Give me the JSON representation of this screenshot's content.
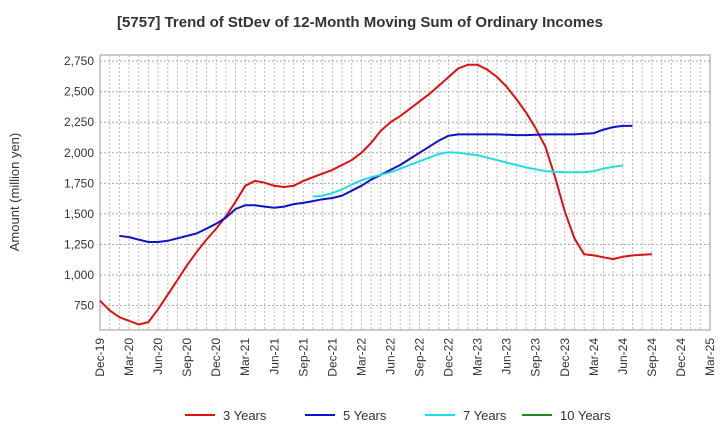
{
  "chart_data": {
    "type": "line",
    "title": "[5757]  Trend of StDev of 12-Month Moving Sum of Ordinary Incomes",
    "xlabel": "",
    "ylabel": "Amount (million yen)",
    "ylim": [
      550,
      2800
    ],
    "yticks": [
      750,
      1000,
      1250,
      1500,
      1750,
      2000,
      2250,
      2500,
      2750
    ],
    "ytick_labels": [
      "750",
      "1,000",
      "1,250",
      "1,500",
      "1,750",
      "2,000",
      "2,250",
      "2,500",
      "2,750"
    ],
    "x_tick_labels": [
      "Dec-19",
      "Mar-20",
      "Jun-20",
      "Sep-20",
      "Dec-20",
      "Mar-21",
      "Jun-21",
      "Sep-21",
      "Dec-21",
      "Mar-22",
      "Jun-22",
      "Sep-22",
      "Dec-22",
      "Mar-23",
      "Jun-23",
      "Sep-23",
      "Dec-23",
      "Mar-24",
      "Jun-24",
      "Sep-24",
      "Dec-24",
      "Mar-25"
    ],
    "grid": true,
    "legend_position": "bottom",
    "series": [
      {
        "name": "3 Years",
        "color": "#dd1111",
        "points": [
          [
            0,
            790
          ],
          [
            1,
            710
          ],
          [
            2,
            655
          ],
          [
            3,
            625
          ],
          [
            4,
            595
          ],
          [
            5,
            615
          ],
          [
            6,
            720
          ],
          [
            7,
            840
          ],
          [
            8,
            960
          ],
          [
            9,
            1080
          ],
          [
            10,
            1190
          ],
          [
            11,
            1290
          ],
          [
            12,
            1380
          ],
          [
            13,
            1480
          ],
          [
            14,
            1600
          ],
          [
            15,
            1730
          ],
          [
            16,
            1770
          ],
          [
            17,
            1755
          ],
          [
            18,
            1730
          ],
          [
            19,
            1720
          ],
          [
            20,
            1730
          ],
          [
            21,
            1770
          ],
          [
            22,
            1800
          ],
          [
            23,
            1830
          ],
          [
            24,
            1860
          ],
          [
            25,
            1900
          ],
          [
            26,
            1940
          ],
          [
            27,
            2000
          ],
          [
            28,
            2080
          ],
          [
            29,
            2180
          ],
          [
            30,
            2250
          ],
          [
            31,
            2300
          ],
          [
            32,
            2360
          ],
          [
            33,
            2420
          ],
          [
            34,
            2480
          ],
          [
            35,
            2550
          ],
          [
            36,
            2620
          ],
          [
            37,
            2690
          ],
          [
            38,
            2720
          ],
          [
            39,
            2720
          ],
          [
            40,
            2680
          ],
          [
            41,
            2620
          ],
          [
            42,
            2540
          ],
          [
            43,
            2440
          ],
          [
            44,
            2330
          ],
          [
            45,
            2200
          ],
          [
            46,
            2050
          ],
          [
            47,
            1800
          ],
          [
            48,
            1520
          ],
          [
            49,
            1300
          ],
          [
            50,
            1170
          ],
          [
            51,
            1160
          ],
          [
            52,
            1145
          ],
          [
            53,
            1130
          ],
          [
            54,
            1150
          ],
          [
            55,
            1160
          ],
          [
            56,
            1165
          ],
          [
            57,
            1170
          ]
        ]
      },
      {
        "name": "5 Years",
        "color": "#1111cc",
        "points": [
          [
            2,
            1320
          ],
          [
            3,
            1310
          ],
          [
            4,
            1290
          ],
          [
            5,
            1270
          ],
          [
            6,
            1270
          ],
          [
            7,
            1280
          ],
          [
            8,
            1300
          ],
          [
            9,
            1320
          ],
          [
            10,
            1340
          ],
          [
            11,
            1380
          ],
          [
            12,
            1420
          ],
          [
            13,
            1470
          ],
          [
            14,
            1540
          ],
          [
            15,
            1570
          ],
          [
            16,
            1570
          ],
          [
            17,
            1560
          ],
          [
            18,
            1550
          ],
          [
            19,
            1560
          ],
          [
            20,
            1580
          ],
          [
            21,
            1590
          ],
          [
            22,
            1605
          ],
          [
            23,
            1620
          ],
          [
            24,
            1630
          ],
          [
            25,
            1650
          ],
          [
            26,
            1690
          ],
          [
            27,
            1730
          ],
          [
            28,
            1780
          ],
          [
            29,
            1820
          ],
          [
            30,
            1860
          ],
          [
            31,
            1900
          ],
          [
            32,
            1950
          ],
          [
            33,
            2000
          ],
          [
            34,
            2050
          ],
          [
            35,
            2100
          ],
          [
            36,
            2140
          ],
          [
            37,
            2150
          ],
          [
            38,
            2150
          ],
          [
            39,
            2150
          ],
          [
            40,
            2150
          ],
          [
            41,
            2150
          ],
          [
            42,
            2148
          ],
          [
            43,
            2145
          ],
          [
            44,
            2145
          ],
          [
            45,
            2148
          ],
          [
            46,
            2150
          ],
          [
            47,
            2150
          ],
          [
            48,
            2150
          ],
          [
            49,
            2150
          ],
          [
            50,
            2155
          ],
          [
            51,
            2160
          ],
          [
            52,
            2190
          ],
          [
            53,
            2210
          ],
          [
            54,
            2220
          ],
          [
            55,
            2220
          ]
        ]
      },
      {
        "name": "7 Years",
        "color": "#22dddd",
        "points": [
          [
            22,
            1640
          ],
          [
            23,
            1650
          ],
          [
            24,
            1670
          ],
          [
            25,
            1700
          ],
          [
            26,
            1740
          ],
          [
            27,
            1775
          ],
          [
            28,
            1800
          ],
          [
            29,
            1820
          ],
          [
            30,
            1840
          ],
          [
            31,
            1870
          ],
          [
            32,
            1900
          ],
          [
            33,
            1930
          ],
          [
            34,
            1960
          ],
          [
            35,
            1990
          ],
          [
            36,
            2005
          ],
          [
            37,
            2000
          ],
          [
            38,
            1990
          ],
          [
            39,
            1980
          ],
          [
            40,
            1960
          ],
          [
            41,
            1940
          ],
          [
            42,
            1920
          ],
          [
            43,
            1900
          ],
          [
            44,
            1880
          ],
          [
            45,
            1865
          ],
          [
            46,
            1850
          ],
          [
            47,
            1845
          ],
          [
            48,
            1840
          ],
          [
            49,
            1840
          ],
          [
            50,
            1840
          ],
          [
            51,
            1850
          ],
          [
            52,
            1870
          ],
          [
            53,
            1885
          ],
          [
            54,
            1895
          ]
        ]
      },
      {
        "name": "10 Years",
        "color": "#228822",
        "points": []
      }
    ]
  }
}
